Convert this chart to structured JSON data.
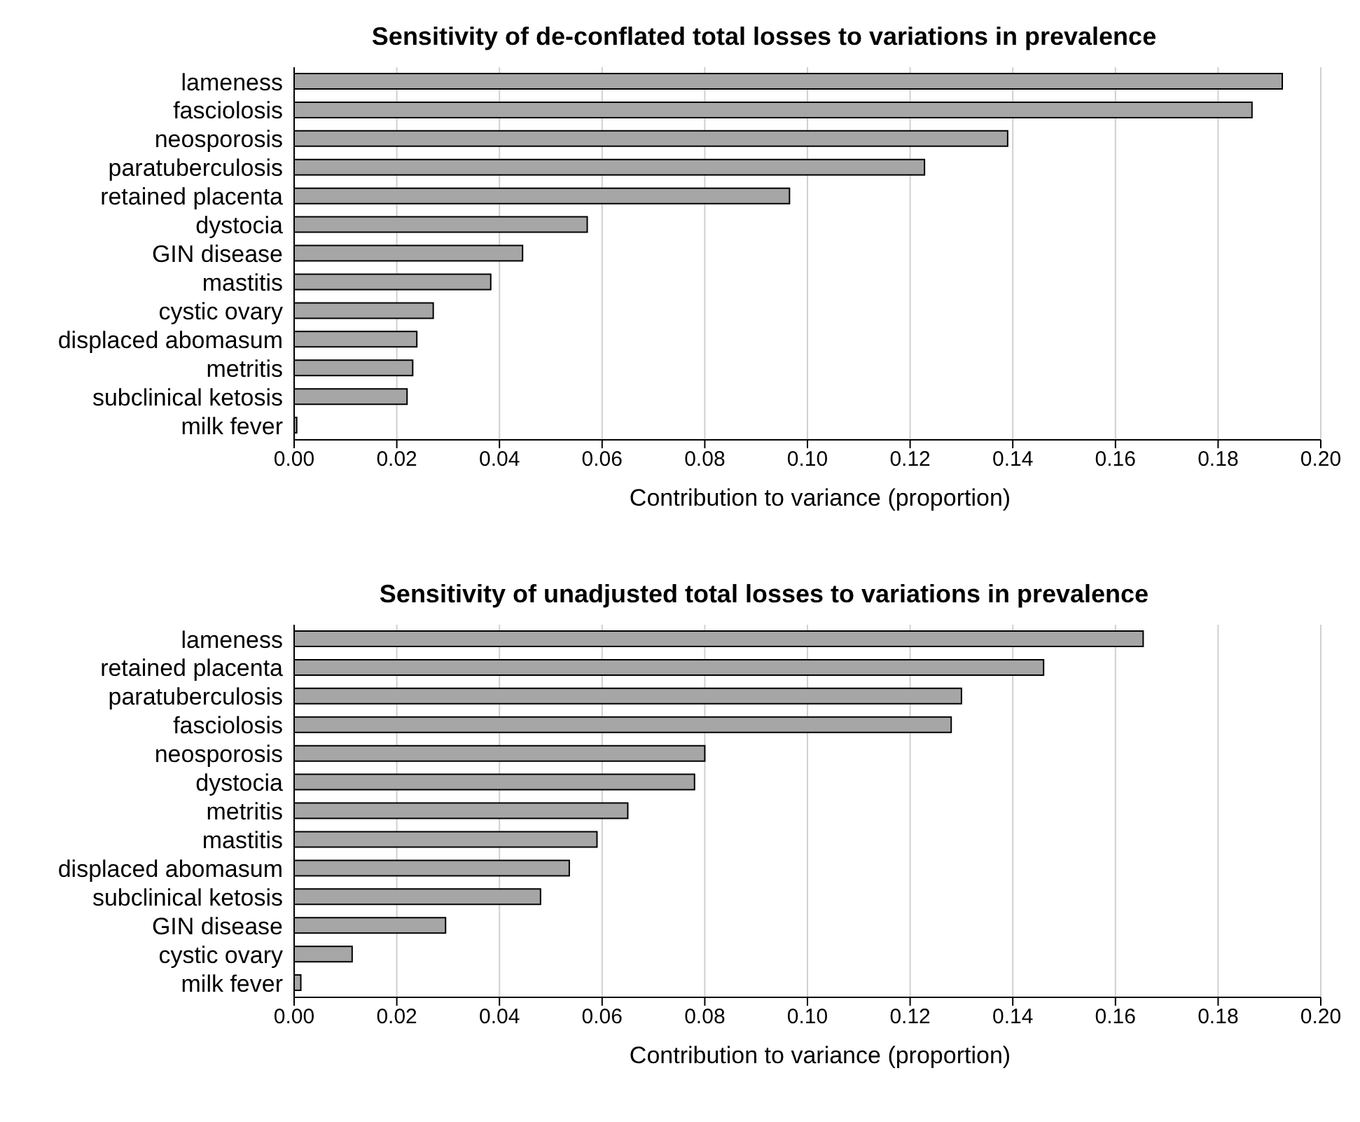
{
  "chart_data": [
    {
      "type": "bar",
      "orientation": "horizontal",
      "title": "Sensitivity of de-conflated total losses to variations in prevalence",
      "xlabel": "Contribution to variance (proportion)",
      "categories": [
        "lameness",
        "fasciolosis",
        "neosporosis",
        "paratuberculosis",
        "retained placenta",
        "dystocia",
        "GIN disease",
        "mastitis",
        "cystic ovary",
        "displaced abomasum",
        "metritis",
        "subclinical ketosis",
        "milk fever"
      ],
      "values": [
        0.1925,
        0.1866,
        0.139,
        0.1228,
        0.0965,
        0.0571,
        0.0445,
        0.0383,
        0.0271,
        0.0239,
        0.0231,
        0.022,
        0.0005
      ],
      "color": "#a6a6a6",
      "xlim": [
        0,
        0.2
      ],
      "xticks": [
        {
          "value": 0,
          "label": "0.00"
        },
        {
          "value": 0.02,
          "label": "0.02"
        },
        {
          "value": 0.04,
          "label": "0.04"
        },
        {
          "value": 0.06,
          "label": "0.06"
        },
        {
          "value": 0.08,
          "label": "0.08"
        },
        {
          "value": 0.1,
          "label": "0.10"
        },
        {
          "value": 0.12,
          "label": "0.12"
        },
        {
          "value": 0.14,
          "label": "0.14"
        },
        {
          "value": 0.16,
          "label": "0.16"
        },
        {
          "value": 0.18,
          "label": "0.18"
        },
        {
          "value": 0.2,
          "label": "0.20"
        }
      ],
      "grid": "x"
    },
    {
      "type": "bar",
      "orientation": "horizontal",
      "title": "Sensitivity of unadjusted total losses to variations in prevalence",
      "xlabel": "Contribution to variance (proportion)",
      "categories": [
        "lameness",
        "retained placenta",
        "paratuberculosis",
        "fasciolosis",
        "neosporosis",
        "dystocia",
        "metritis",
        "mastitis",
        "displaced abomasum",
        "subclinical ketosis",
        "GIN disease",
        "cystic ovary",
        "milk fever"
      ],
      "values": [
        0.1654,
        0.146,
        0.13,
        0.128,
        0.08,
        0.078,
        0.065,
        0.059,
        0.0536,
        0.048,
        0.0295,
        0.0113,
        0.0013
      ],
      "color": "#a6a6a6",
      "xlim": [
        0,
        0.2
      ],
      "xticks": [
        {
          "value": 0,
          "label": "0.00"
        },
        {
          "value": 0.02,
          "label": "0.02"
        },
        {
          "value": 0.04,
          "label": "0.04"
        },
        {
          "value": 0.06,
          "label": "0.06"
        },
        {
          "value": 0.08,
          "label": "0.08"
        },
        {
          "value": 0.1,
          "label": "0.10"
        },
        {
          "value": 0.12,
          "label": "0.12"
        },
        {
          "value": 0.14,
          "label": "0.14"
        },
        {
          "value": 0.16,
          "label": "0.16"
        },
        {
          "value": 0.18,
          "label": "0.18"
        },
        {
          "value": 0.2,
          "label": "0.20"
        }
      ],
      "grid": "x"
    }
  ]
}
